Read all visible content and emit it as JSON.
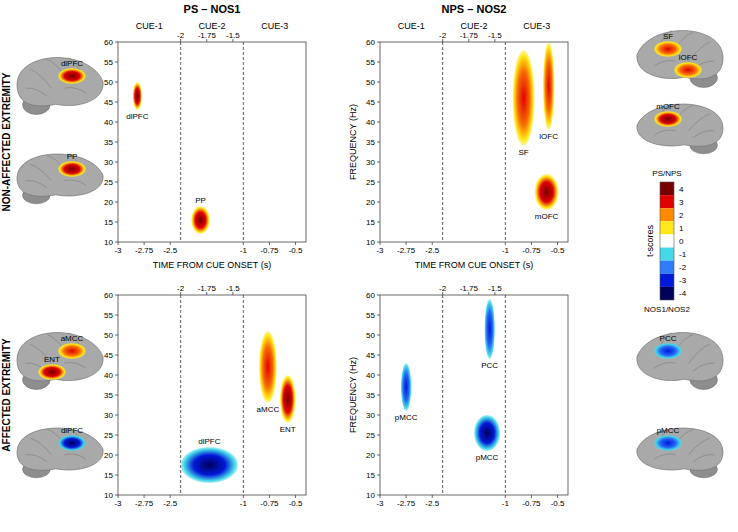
{
  "chart_data": [
    {
      "type": "heatmap",
      "title": "PS – NOS1",
      "row_label": "NON-AFFECTED EXTREMITY",
      "xlabel": "TIME FROM CUE ONSET (s)",
      "ylim": [
        10,
        60
      ],
      "yticks": [
        10,
        15,
        20,
        25,
        30,
        35,
        40,
        45,
        50,
        55,
        60
      ],
      "windows": [
        {
          "title": "CUE-1",
          "xlim": [
            -3,
            -2.4
          ],
          "xticks": [
            -3,
            -2.75,
            -2.5
          ],
          "clusters": [
            {
              "label": "dlPFC",
              "t": [
                -2.86,
                -2.77
              ],
              "f": [
                43,
                50
              ],
              "tscore": 4
            }
          ]
        },
        {
          "title": "CUE-2",
          "xlim": [
            -2,
            -1.4
          ],
          "xticks": [
            -2,
            -1.75,
            -1.5
          ],
          "clusters": [
            {
              "label": "PP",
              "t": [
                -1.9,
                -1.72
              ],
              "f": [
                12,
                19
              ],
              "tscore": 4
            }
          ]
        },
        {
          "title": "CUE-3",
          "xlim": [
            -1,
            -0.4
          ],
          "xticks": [
            -1,
            -0.75,
            -0.5
          ],
          "clusters": []
        }
      ],
      "brains": [
        [
          "dlPFC"
        ],
        [
          "PP"
        ]
      ]
    },
    {
      "type": "heatmap",
      "title": "NPS – NOS2",
      "xlabel": "TIME FROM CUE ONSET (s)",
      "ylabel": "FREQUENCY (Hz)",
      "ylim": [
        10,
        60
      ],
      "yticks": [
        10,
        15,
        20,
        25,
        30,
        35,
        40,
        45,
        50,
        55,
        60
      ],
      "windows": [
        {
          "title": "CUE-1",
          "xlim": [
            -3,
            -2.4
          ],
          "xticks": [
            -3,
            -2.75,
            -2.5
          ],
          "clusters": []
        },
        {
          "title": "CUE-2",
          "xlim": [
            -2,
            -1.4
          ],
          "xticks": [
            -2,
            -1.75,
            -1.5
          ],
          "clusters": []
        },
        {
          "title": "CUE-3",
          "xlim": [
            -1,
            -0.4
          ],
          "xticks": [
            -1,
            -0.75,
            -0.5
          ],
          "clusters": [
            {
              "label": "SF",
              "t": [
                -0.93,
                -0.72
              ],
              "f": [
                34,
                58
              ],
              "tscore": 3
            },
            {
              "label": "lOFC",
              "t": [
                -0.64,
                -0.53
              ],
              "f": [
                38,
                60
              ],
              "tscore": 3
            },
            {
              "label": "mOFC",
              "t": [
                -0.72,
                -0.49
              ],
              "f": [
                18,
                27
              ],
              "tscore": 4
            }
          ]
        }
      ],
      "brains": [
        [
          "SF",
          "lOFC"
        ],
        [
          "mOFC"
        ]
      ]
    },
    {
      "type": "heatmap",
      "row_label": "AFFECTED EXTREMITY",
      "ylim": [
        10,
        60
      ],
      "yticks": [
        10,
        15,
        20,
        25,
        30,
        35,
        40,
        45,
        50,
        55,
        60
      ],
      "windows": [
        {
          "xlim": [
            -3,
            -2.4
          ],
          "xticks": [
            -3,
            -2.75,
            -2.5
          ],
          "clusters": []
        },
        {
          "xlim": [
            -2,
            -1.4
          ],
          "xticks": [
            -2,
            -1.75,
            -1.5
          ],
          "clusters": [
            {
              "label": "dlPFC",
              "t": [
                -2,
                -1.45
              ],
              "f": [
                13,
                22
              ],
              "tscore": -4
            }
          ]
        },
        {
          "xlim": [
            -1,
            -0.4
          ],
          "xticks": [
            -1,
            -0.75,
            -0.5
          ],
          "clusters": [
            {
              "label": "aMCC",
              "t": [
                -0.85,
                -0.68
              ],
              "f": [
                33,
                51
              ],
              "tscore": 3
            },
            {
              "label": "ENT",
              "t": [
                -0.65,
                -0.5
              ],
              "f": [
                28,
                40
              ],
              "tscore": 4
            }
          ]
        }
      ],
      "brains": [
        [
          "aMCC",
          "ENT"
        ],
        [
          "dlPFC"
        ]
      ]
    },
    {
      "type": "heatmap",
      "ylabel": "FREQUENCY (Hz)",
      "ylim": [
        10,
        60
      ],
      "yticks": [
        10,
        15,
        20,
        25,
        30,
        35,
        40,
        45,
        50,
        55,
        60
      ],
      "windows": [
        {
          "xlim": [
            -3,
            -2.4
          ],
          "xticks": [
            -3,
            -2.75,
            -2.5
          ],
          "clusters": [
            {
              "label": "pMCC",
              "t": [
                -2.8,
                -2.7
              ],
              "f": [
                31,
                43
              ],
              "tscore": -3
            }
          ]
        },
        {
          "xlim": [
            -2,
            -1.4
          ],
          "xticks": [
            -2,
            -1.75,
            -1.5
          ],
          "clusters": [
            {
              "label": "PCC",
              "t": [
                -1.6,
                -1.5
              ],
              "f": [
                44,
                59
              ],
              "tscore": -3
            },
            {
              "label": "pMCC",
              "t": [
                -1.7,
                -1.45
              ],
              "f": [
                21,
                30
              ],
              "tscore": -4
            }
          ]
        },
        {
          "xlim": [
            -1,
            -0.4
          ],
          "xticks": [
            -1,
            -0.75,
            -0.5
          ],
          "clusters": []
        }
      ],
      "brains": [
        [
          "PCC"
        ],
        [
          "pMCC"
        ]
      ]
    }
  ],
  "colorbar": {
    "title": "t-scores",
    "top_label": "PS/NPS",
    "bottom_label": "NOS1/NOS2",
    "range": [
      -4.5,
      4.5
    ],
    "ticks": [
      4,
      3,
      2,
      1,
      0,
      -1,
      -2,
      -3,
      -4
    ]
  }
}
